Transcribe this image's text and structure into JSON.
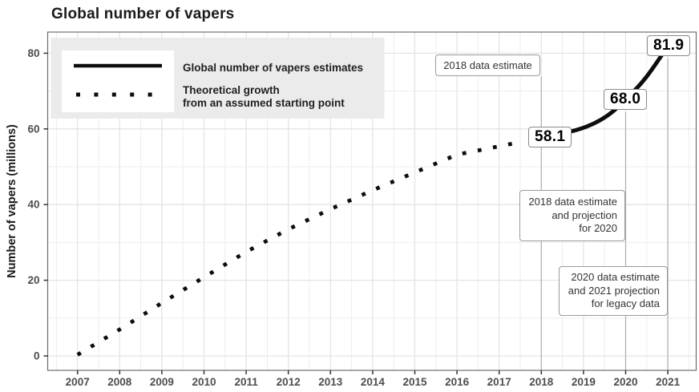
{
  "title": "Global number of vapers",
  "ylabel": "Number of vapers (millions)",
  "colors": {
    "series": "#0d0d0d",
    "grid_major": "#e4e4e4",
    "grid_minor": "#ededed",
    "panel_border": "#6e6e6e",
    "legend_bg": "#ebebeb",
    "ref_line": "#b0b0b0",
    "axis_text": "#4d4d4d",
    "tick_mark": "#333333",
    "annotation_border": "#9a9a9a",
    "annotation_text": "#333333"
  },
  "legend": {
    "items": [
      {
        "label": "Global number of vapers estimates",
        "style": "solid"
      },
      {
        "lines": [
          "Theoretical growth",
          "from an assumed starting point"
        ],
        "style": "dotted"
      }
    ]
  },
  "annotations": [
    {
      "lines": [
        "2018 data estimate"
      ]
    },
    {
      "lines": [
        "2018 data estimate",
        "and projection",
        "for 2020"
      ]
    },
    {
      "lines": [
        "2020 data estimate",
        "and 2021 projection",
        "for legacy data"
      ]
    }
  ],
  "value_labels": [
    "58.1",
    "68.0",
    "81.9"
  ],
  "chart_data": {
    "type": "line",
    "title": "Global number of vapers",
    "xlabel": "",
    "ylabel": "Number of vapers (millions)",
    "xlim": [
      2006.3,
      2021.7
    ],
    "ylim": [
      -4,
      86
    ],
    "x_ticks": [
      2007,
      2008,
      2009,
      2010,
      2011,
      2012,
      2013,
      2014,
      2015,
      2016,
      2017,
      2018,
      2019,
      2020,
      2021
    ],
    "y_ticks": [
      0,
      20,
      40,
      60,
      80
    ],
    "grid": true,
    "legend_position": "top-left-inside",
    "series": [
      {
        "name": "Theoretical growth from an assumed starting point",
        "style": "dotted",
        "x": [
          2007,
          2008,
          2009,
          2010,
          2011,
          2012,
          2013,
          2014,
          2015,
          2016,
          2017,
          2017.55
        ],
        "y": [
          0.3,
          7.0,
          14.0,
          20.8,
          27.5,
          33.5,
          38.8,
          43.8,
          48.5,
          53.2,
          55.4,
          56.6
        ]
      },
      {
        "name": "Global number of vapers estimates",
        "style": "solid",
        "x": [
          2018,
          2020,
          2021
        ],
        "y": [
          58.1,
          68.0,
          81.9
        ]
      }
    ],
    "reference_lines_x": [
      2018,
      2020,
      2021
    ]
  }
}
